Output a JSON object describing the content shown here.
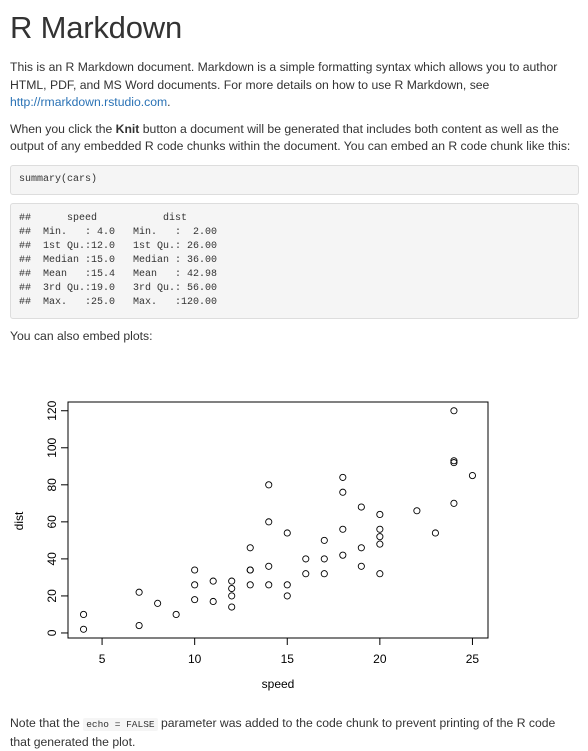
{
  "doc": {
    "title": "R Markdown",
    "intro_text": "This is an R Markdown document. Markdown is a simple formatting syntax which allows you to author HTML, PDF, and MS Word documents. For more details on how to use R Markdown, see ",
    "intro_link": "http://rmarkdown.rstudio.com",
    "intro_end": ".",
    "knit_pre": "When you click the ",
    "knit_bold": "Knit",
    "knit_post": " button a document will be generated that includes both content as well as the output of any embedded R code chunks within the document. You can embed an R code chunk like this:",
    "code_input": "summary(cars)",
    "code_output": "##      speed           dist       \n##  Min.   : 4.0   Min.   :  2.00  \n##  1st Qu.:12.0   1st Qu.: 26.00  \n##  Median :15.0   Median : 36.00  \n##  Mean   :15.4   Mean   : 42.98  \n##  3rd Qu.:19.0   3rd Qu.: 56.00  \n##  Max.   :25.0   Max.   :120.00  ",
    "plots_text": "You can also embed plots:",
    "note_pre": "Note that the ",
    "note_code": "echo = FALSE",
    "note_post": " parameter was added to the code chunk to prevent printing of the R code that generated the plot."
  },
  "chart_data": {
    "type": "scatter",
    "xlabel": "speed",
    "ylabel": "dist",
    "xlim": [
      4,
      25
    ],
    "ylim": [
      2,
      120
    ],
    "x_ticks": [
      5,
      10,
      15,
      20,
      25
    ],
    "y_ticks": [
      0,
      20,
      40,
      60,
      80,
      100,
      120
    ],
    "grid": false,
    "points": [
      [
        4,
        2
      ],
      [
        4,
        10
      ],
      [
        7,
        4
      ],
      [
        7,
        22
      ],
      [
        8,
        16
      ],
      [
        9,
        10
      ],
      [
        10,
        18
      ],
      [
        10,
        26
      ],
      [
        10,
        34
      ],
      [
        11,
        17
      ],
      [
        11,
        28
      ],
      [
        12,
        14
      ],
      [
        12,
        20
      ],
      [
        12,
        24
      ],
      [
        12,
        28
      ],
      [
        13,
        26
      ],
      [
        13,
        34
      ],
      [
        13,
        34
      ],
      [
        13,
        46
      ],
      [
        14,
        26
      ],
      [
        14,
        36
      ],
      [
        14,
        60
      ],
      [
        14,
        80
      ],
      [
        15,
        20
      ],
      [
        15,
        26
      ],
      [
        15,
        54
      ],
      [
        16,
        32
      ],
      [
        16,
        40
      ],
      [
        17,
        32
      ],
      [
        17,
        40
      ],
      [
        17,
        50
      ],
      [
        18,
        42
      ],
      [
        18,
        56
      ],
      [
        18,
        76
      ],
      [
        18,
        84
      ],
      [
        19,
        36
      ],
      [
        19,
        46
      ],
      [
        19,
        68
      ],
      [
        20,
        32
      ],
      [
        20,
        48
      ],
      [
        20,
        52
      ],
      [
        20,
        56
      ],
      [
        20,
        64
      ],
      [
        22,
        66
      ],
      [
        23,
        54
      ],
      [
        24,
        70
      ],
      [
        24,
        92
      ],
      [
        24,
        93
      ],
      [
        24,
        120
      ],
      [
        25,
        85
      ]
    ]
  }
}
